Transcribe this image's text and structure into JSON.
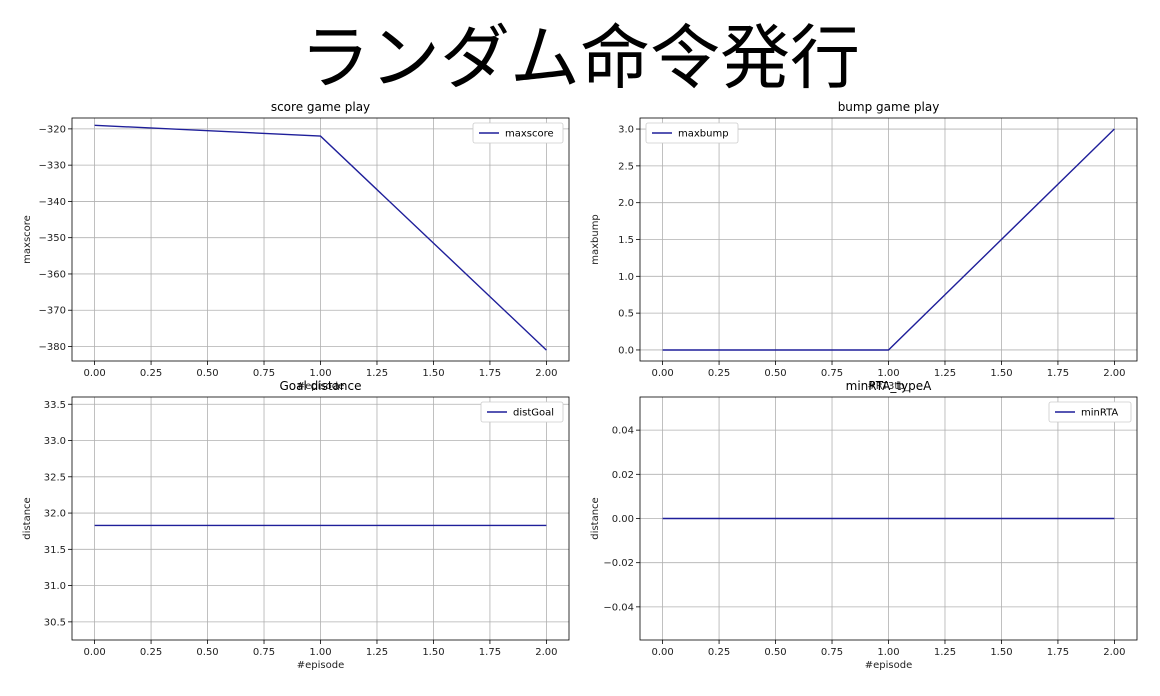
{
  "page": {
    "title": "ランダム命令発行"
  },
  "colors": {
    "line": "#1f1f9a",
    "grid": "#b0b0b0",
    "axis": "#000000",
    "legend_border": "#cccccc"
  },
  "chart_data": [
    {
      "type": "line",
      "title": "score game play",
      "xlabel": "#episode",
      "ylabel": "maxscore",
      "x": [
        0.0,
        1.0,
        2.0
      ],
      "series": [
        {
          "name": "maxscore",
          "values": [
            -319,
            -322,
            -381
          ]
        }
      ],
      "xlim": [
        -0.1,
        2.1
      ],
      "ylim": [
        -384,
        -317
      ],
      "xticks": [
        "0.00",
        "0.25",
        "0.50",
        "0.75",
        "1.00",
        "1.25",
        "1.50",
        "1.75",
        "2.00"
      ],
      "yticks": [
        "-320",
        "-330",
        "-340",
        "-350",
        "-360",
        "-370",
        "-380"
      ],
      "grid": true,
      "legend": "top-right"
    },
    {
      "type": "line",
      "title": "bump game play",
      "xlabel": "#RT3tb_",
      "ylabel": "maxbump",
      "x": [
        0.0,
        1.0,
        2.0
      ],
      "series": [
        {
          "name": "maxbump",
          "values": [
            0,
            0,
            3
          ]
        }
      ],
      "xlim": [
        -0.1,
        2.1
      ],
      "ylim": [
        -0.15,
        3.15
      ],
      "xticks": [
        "0.00",
        "0.25",
        "0.50",
        "0.75",
        "1.00",
        "1.25",
        "1.50",
        "1.75",
        "2.00"
      ],
      "yticks": [
        "0.0",
        "0.5",
        "1.0",
        "1.5",
        "2.0",
        "2.5",
        "3.0"
      ],
      "grid": true,
      "legend": "top-left"
    },
    {
      "type": "line",
      "title": "Goal distance",
      "xlabel": "#episode",
      "ylabel": "distance",
      "x": [
        0.0,
        1.0,
        2.0
      ],
      "series": [
        {
          "name": "distGoal",
          "values": [
            31.83,
            31.83,
            31.83
          ]
        }
      ],
      "xlim": [
        -0.1,
        2.1
      ],
      "ylim": [
        30.25,
        33.6
      ],
      "xticks": [
        "0.00",
        "0.25",
        "0.50",
        "0.75",
        "1.00",
        "1.25",
        "1.50",
        "1.75",
        "2.00"
      ],
      "yticks": [
        "30.5",
        "31.0",
        "31.5",
        "32.0",
        "32.5",
        "33.0",
        "33.5"
      ],
      "grid": true,
      "legend": "top-right"
    },
    {
      "type": "line",
      "title": "minRTA_typeA",
      "xlabel": "#episode",
      "ylabel": "distance",
      "x": [
        0.0,
        1.0,
        2.0
      ],
      "series": [
        {
          "name": "minRTA",
          "values": [
            0,
            0,
            0
          ]
        }
      ],
      "xlim": [
        -0.1,
        2.1
      ],
      "ylim": [
        -0.055,
        0.055
      ],
      "xticks": [
        "0.00",
        "0.25",
        "0.50",
        "0.75",
        "1.00",
        "1.25",
        "1.50",
        "1.75",
        "2.00"
      ],
      "yticks": [
        "-0.04",
        "-0.02",
        "0.00",
        "0.02",
        "0.04"
      ],
      "grid": true,
      "legend": "top-right"
    }
  ]
}
